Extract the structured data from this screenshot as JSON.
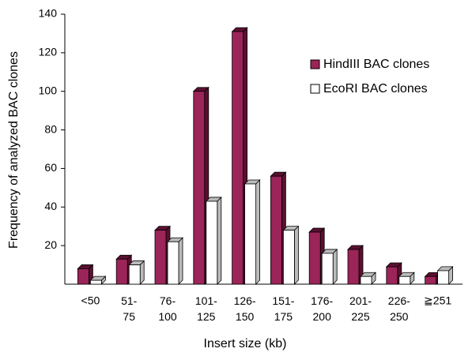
{
  "chart_data": {
    "type": "bar3d",
    "xlabel": "Insert size (kb)",
    "ylabel": "Frequency of analyzed BAC clones",
    "categories": [
      "<50",
      "51-\n75",
      "76-\n100",
      "101-\n125",
      "126-\n150",
      "151-\n175",
      "176-\n200",
      "201-\n225",
      "226-\n250",
      "≧251"
    ],
    "series": [
      {
        "name": "HindIII BAC clones",
        "color": "#9b2458",
        "values": [
          8,
          13,
          28,
          100,
          131,
          56,
          27,
          18,
          9,
          4
        ]
      },
      {
        "name": "EcoRI BAC clones",
        "color": "#ffffff",
        "values": [
          2,
          10,
          22,
          43,
          52,
          28,
          16,
          4,
          4,
          7
        ]
      }
    ],
    "ylim": [
      0,
      140
    ],
    "yticks": [
      20,
      40,
      60,
      80,
      100,
      120,
      140
    ],
    "legend": "upper right"
  }
}
